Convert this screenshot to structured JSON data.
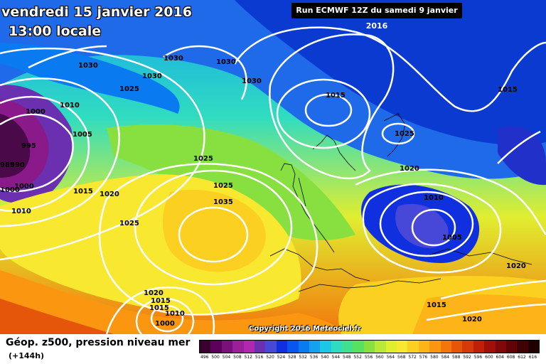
{
  "header": {
    "date_line": "vendredi 15 janvier 2016",
    "time_line": "13:00 locale",
    "run_info": "Run ECMWF 12Z du samedi 9 janvier 2016"
  },
  "copyright": "Copyright 2016 Meteociel.fr",
  "footer": {
    "caption": "Géop. z500, pression niveau mer",
    "lead_time": "(+144h)"
  },
  "legend": {
    "labels": [
      "496",
      "500",
      "504",
      "508",
      "512",
      "516",
      "520",
      "524",
      "528",
      "532",
      "536",
      "540",
      "544",
      "548",
      "552",
      "556",
      "560",
      "564",
      "568",
      "572",
      "576",
      "580",
      "584",
      "588",
      "592",
      "596",
      "600",
      "604",
      "608",
      "612",
      "616"
    ],
    "colors": [
      "#3a0030",
      "#5a005a",
      "#7a107a",
      "#9a209a",
      "#b028b0",
      "#6a30b0",
      "#4848d8",
      "#1030e0",
      "#0a55ee",
      "#0a7af0",
      "#14a2ee",
      "#1ec6e6",
      "#30dcc0",
      "#40e08c",
      "#58e060",
      "#88e040",
      "#b8e838",
      "#e0ee30",
      "#f8e830",
      "#fcd020",
      "#fcb418",
      "#fa9610",
      "#f2760c",
      "#e6560a",
      "#d63a08",
      "#c02008",
      "#a01008",
      "#800808",
      "#600406",
      "#400204",
      "#200000"
    ]
  },
  "pressure_labels": [
    "1030",
    "1030",
    "1030",
    "1030",
    "1015",
    "1015",
    "1025",
    "1010",
    "1000",
    "1005",
    "995",
    "985",
    "990",
    "1000",
    "1000",
    "1015",
    "1020",
    "1010",
    "1025",
    "1025",
    "1025",
    "1030",
    "1035",
    "1020",
    "1010",
    "1005",
    "1020",
    "1020",
    "1015",
    "1015",
    "1020",
    "1010",
    "1000",
    "1025",
    "1015"
  ]
}
